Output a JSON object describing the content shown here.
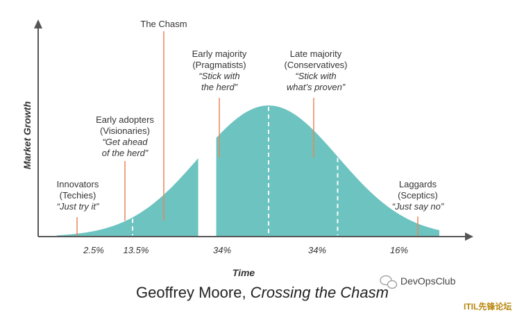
{
  "chart_data": {
    "type": "area",
    "xlabel": "Time",
    "ylabel": "Market Growth",
    "fill_color": "#6cc3c0",
    "pointer_color": "#e8865a",
    "segments": [
      {
        "name": "Innovators",
        "subtitle": "(Techies)",
        "quote": [
          "“Just try it”"
        ],
        "share_label": "2.5%",
        "share": 2.5
      },
      {
        "name": "Early adopters",
        "subtitle": "(Visionaries)",
        "quote": [
          "“Get ahead",
          "of the herd”"
        ],
        "share_label": "13.5%",
        "share": 13.5
      },
      {
        "name": "Early majority",
        "subtitle": "(Pragmatists)",
        "quote": [
          "“Stick with",
          "the herd”"
        ],
        "share_label": "34%",
        "share": 34
      },
      {
        "name": "Late majority",
        "subtitle": "(Conservatives)",
        "quote": [
          "“Stick with",
          "what’s proven”"
        ],
        "share_label": "34%",
        "share": 34
      },
      {
        "name": "Laggards",
        "subtitle": "(Sceptics)",
        "quote": [
          "“Just say no”"
        ],
        "share_label": "16%",
        "share": 16
      }
    ],
    "annotations": [
      {
        "text": "The Chasm"
      }
    ]
  },
  "caption": {
    "author": "Geoffrey Moore, ",
    "title": "Crossing the Chasm"
  },
  "watermark": {
    "brand": "DevOpsClub",
    "brand_icon": "wechat-icon",
    "forum": "ITIL先锋论坛"
  }
}
